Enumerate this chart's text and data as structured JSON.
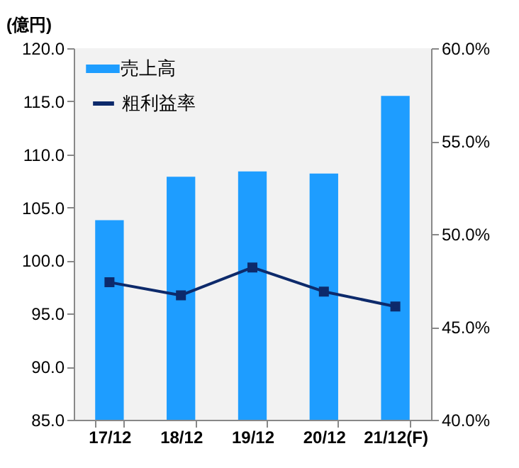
{
  "chart_data": {
    "type": "bar",
    "ylabel": "(億円)",
    "categories": [
      "17/12",
      "18/12",
      "19/12",
      "20/12",
      "21/12(F)"
    ],
    "series": [
      {
        "name": "売上高",
        "color": "#1e9dff",
        "values": [
          103.8,
          107.9,
          108.4,
          108.2,
          115.5
        ]
      },
      {
        "name": "粗利益率",
        "type": "line",
        "axis": "y2",
        "color": "#0d2a6b",
        "marker": "square",
        "values": [
          47.4,
          46.7,
          48.2,
          46.9,
          46.1
        ]
      }
    ],
    "ylim": [
      85,
      120
    ],
    "yticks": [
      {
        "value": 85,
        "label": "85.0"
      },
      {
        "value": 90,
        "label": "90.0"
      },
      {
        "value": 95,
        "label": "95.0"
      },
      {
        "value": 100,
        "label": "100.0"
      },
      {
        "value": 105,
        "label": "105.0"
      },
      {
        "value": 110,
        "label": "110.0"
      },
      {
        "value": 115,
        "label": "115.0"
      },
      {
        "value": 120,
        "label": "120.0"
      }
    ],
    "y2lim": [
      40,
      60
    ],
    "y2ticks": [
      {
        "value": 40,
        "label": "40.0%"
      },
      {
        "value": 45,
        "label": "45.0%"
      },
      {
        "value": 50,
        "label": "50.0%"
      },
      {
        "value": 55,
        "label": "55.0%"
      },
      {
        "value": 60,
        "label": "60.0%"
      }
    ],
    "grid": false,
    "legend": "top left"
  }
}
